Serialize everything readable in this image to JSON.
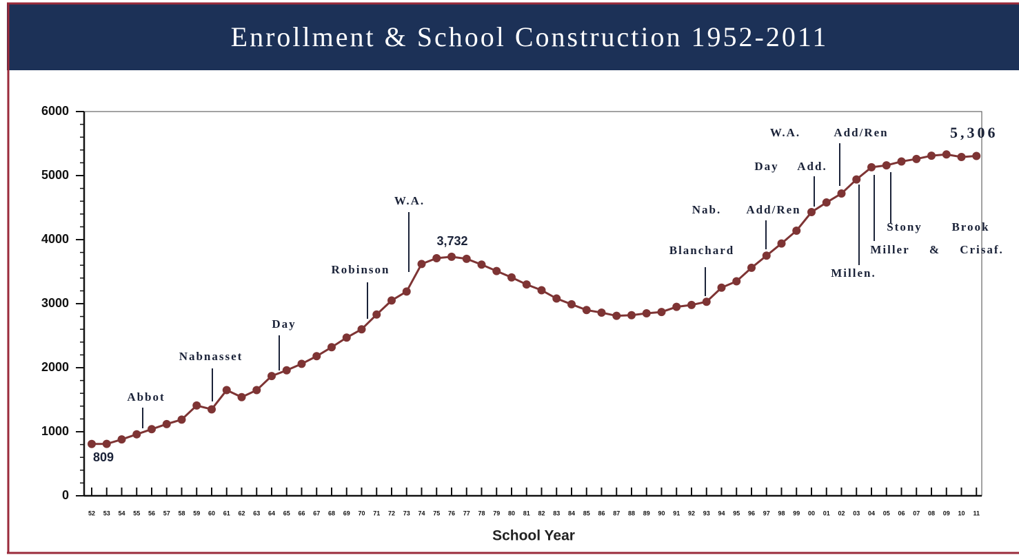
{
  "chart_data": {
    "type": "line",
    "title": "Enrollment & School Construction 1952-2011",
    "x_label": "School Year",
    "categories": [
      "52",
      "53",
      "54",
      "55",
      "56",
      "57",
      "58",
      "59",
      "60",
      "61",
      "62",
      "63",
      "64",
      "65",
      "66",
      "67",
      "68",
      "69",
      "70",
      "71",
      "72",
      "73",
      "74",
      "75",
      "76",
      "77",
      "78",
      "79",
      "80",
      "81",
      "82",
      "83",
      "84",
      "85",
      "86",
      "87",
      "88",
      "89",
      "90",
      "91",
      "92",
      "93",
      "94",
      "95",
      "96",
      "97",
      "98",
      "99",
      "00",
      "01",
      "02",
      "03",
      "04",
      "05",
      "06",
      "07",
      "08",
      "09",
      "10",
      "11"
    ],
    "series": [
      {
        "name": "Enrollment",
        "color": "#7e3434",
        "values": [
          809,
          810,
          880,
          960,
          1040,
          1120,
          1190,
          1410,
          1350,
          1650,
          1540,
          1650,
          1870,
          1960,
          2060,
          2180,
          2320,
          2470,
          2600,
          2830,
          3050,
          3190,
          3620,
          3710,
          3732,
          3700,
          3610,
          3510,
          3410,
          3300,
          3210,
          3080,
          2990,
          2900,
          2860,
          2810,
          2820,
          2850,
          2870,
          2950,
          2980,
          3030,
          3250,
          3350,
          3560,
          3750,
          3940,
          4140,
          4430,
          4580,
          4720,
          4940,
          5130,
          5160,
          5220,
          5260,
          5310,
          5330,
          5290,
          5306
        ],
        "value_labels": [
          "809",
          null,
          null,
          null,
          null,
          null,
          null,
          null,
          null,
          null,
          null,
          null,
          null,
          null,
          null,
          null,
          null,
          null,
          null,
          null,
          null,
          null,
          null,
          null,
          "3,732",
          null,
          null,
          null,
          null,
          null,
          null,
          null,
          null,
          null,
          null,
          null,
          null,
          null,
          null,
          null,
          null,
          null,
          null,
          null,
          null,
          null,
          null,
          null,
          null,
          null,
          null,
          null,
          null,
          null,
          null,
          null,
          null,
          null,
          null,
          "5,306"
        ]
      }
    ],
    "ylim": [
      0,
      6000
    ],
    "yticks": [
      0,
      1000,
      2000,
      3000,
      4000,
      5000,
      6000
    ],
    "annotations": [
      "Abbot",
      "Nabnasset",
      "Day",
      "Robinson",
      "W.A.",
      "Blanchard",
      "Nab.",
      "Add/Ren",
      "Day",
      "Add.",
      "W.A.",
      "Add/Ren",
      "Stony",
      "Brook",
      "Miller",
      "&",
      "Crisaf.",
      "Millen."
    ]
  }
}
